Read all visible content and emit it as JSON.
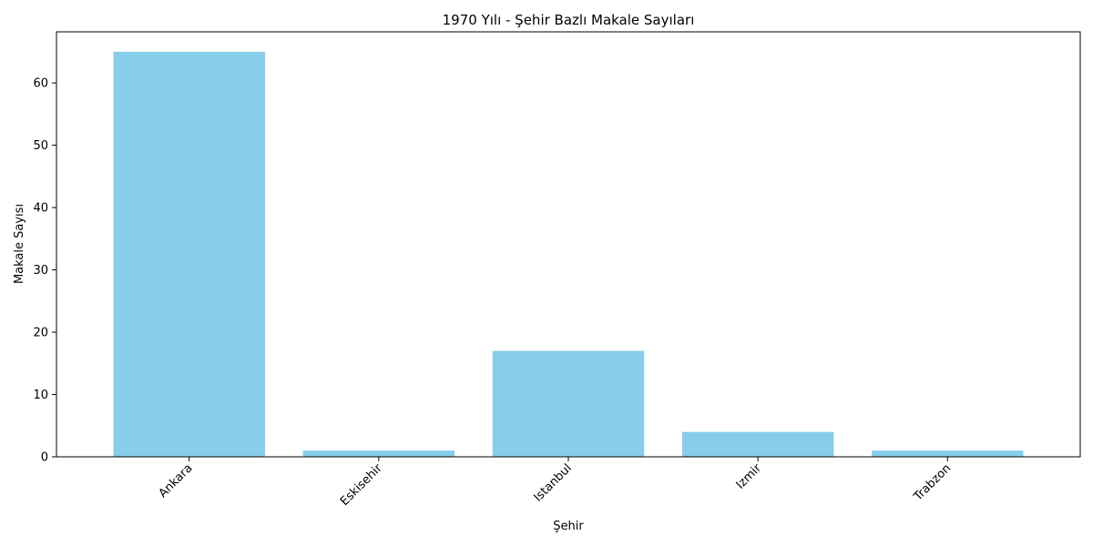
{
  "chart_data": {
    "type": "bar",
    "title": "1970 Yılı - Şehir Bazlı Makale Sayıları",
    "xlabel": "Şehir",
    "ylabel": "Makale Sayısı",
    "categories": [
      "Ankara",
      "Eskisehir",
      "Istanbul",
      "Izmir",
      "Trabzon"
    ],
    "values": [
      65,
      1,
      17,
      4,
      1
    ],
    "ylim": [
      0,
      68.2
    ],
    "yticks": [
      0,
      10,
      20,
      30,
      40,
      50,
      60
    ],
    "grid": false,
    "colors": {
      "bar": "#87ceeb",
      "axis": "#000000",
      "background": "#ffffff"
    }
  }
}
